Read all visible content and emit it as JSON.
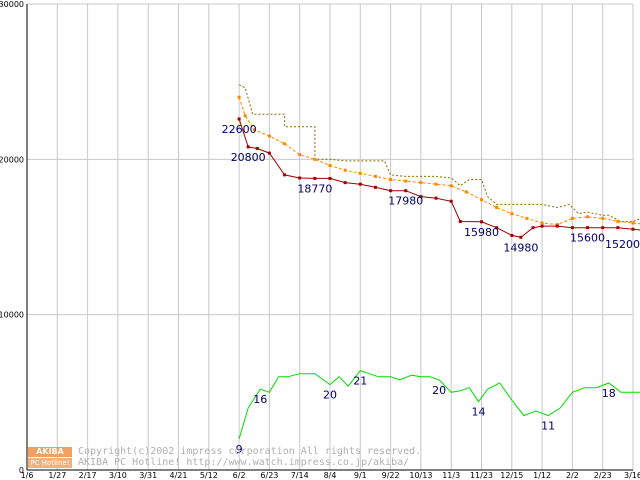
{
  "chart_data": {
    "type": "line",
    "title": "",
    "xlabel": "",
    "ylabel": "",
    "ylim": [
      0,
      30000
    ],
    "grid": true,
    "x_ticks": [
      "1/6",
      "1/27",
      "2/17",
      "3/10",
      "3/31",
      "4/21",
      "5/12",
      "6/2",
      "6/23",
      "7/14",
      "8/4",
      "9/1",
      "9/22",
      "10/13",
      "11/3",
      "11/23",
      "12/15",
      "1/12",
      "2/2",
      "2/23",
      "3/16"
    ],
    "y_ticks": [
      0,
      10000,
      20000,
      30000
    ],
    "y_tick_labels": [
      "0",
      "10000",
      "20000",
      "30000"
    ],
    "series": [
      {
        "name": "max_price",
        "color": "#807000",
        "style": "dotted",
        "points": [
          [
            7,
            24800
          ],
          [
            7.2,
            24600
          ],
          [
            7.45,
            22900
          ],
          [
            8.0,
            22900
          ],
          [
            8.5,
            22900
          ],
          [
            8.5,
            22100
          ],
          [
            9.0,
            22100
          ],
          [
            9.5,
            22100
          ],
          [
            9.5,
            20000
          ],
          [
            10,
            20000
          ],
          [
            10.5,
            19900
          ],
          [
            11,
            19900
          ],
          [
            11.5,
            19900
          ],
          [
            11.8,
            19900
          ],
          [
            12,
            19000
          ],
          [
            12.5,
            18900
          ],
          [
            13,
            18900
          ],
          [
            13.5,
            18900
          ],
          [
            14,
            18800
          ],
          [
            14.3,
            18300
          ],
          [
            14.6,
            18700
          ],
          [
            15,
            18700
          ],
          [
            15.2,
            17600
          ],
          [
            15.5,
            17100
          ],
          [
            16,
            17100
          ],
          [
            16.5,
            17100
          ],
          [
            17,
            17100
          ],
          [
            17.5,
            16900
          ],
          [
            17.9,
            17100
          ],
          [
            18.2,
            16500
          ],
          [
            18.5,
            16600
          ],
          [
            19,
            16400
          ],
          [
            19.2,
            16400
          ],
          [
            19.6,
            16000
          ],
          [
            20,
            16000
          ],
          [
            20.4,
            16300
          ],
          [
            20.8,
            16000
          ],
          [
            21,
            16000
          ]
        ]
      },
      {
        "name": "average_price",
        "color": "#ff8800",
        "style": "dashed-markers",
        "points": [
          [
            7,
            24000
          ],
          [
            7.2,
            22800
          ],
          [
            7.5,
            21900
          ],
          [
            8,
            21500
          ],
          [
            8.5,
            21000
          ],
          [
            9,
            20300
          ],
          [
            9.5,
            20000
          ],
          [
            10,
            19600
          ],
          [
            10.5,
            19300
          ],
          [
            11,
            19100
          ],
          [
            11.5,
            18900
          ],
          [
            12,
            18700
          ],
          [
            12.5,
            18600
          ],
          [
            13,
            18500
          ],
          [
            13.5,
            18400
          ],
          [
            14,
            18300
          ],
          [
            14.5,
            17900
          ],
          [
            15,
            17400
          ],
          [
            15.5,
            16900
          ],
          [
            16,
            16500
          ],
          [
            16.5,
            16200
          ],
          [
            17,
            15900
          ],
          [
            17.5,
            15800
          ],
          [
            18,
            16200
          ],
          [
            18.5,
            16300
          ],
          [
            19,
            16200
          ],
          [
            19.5,
            16000
          ],
          [
            20,
            15900
          ],
          [
            20.5,
            15800
          ],
          [
            21,
            15600
          ]
        ]
      },
      {
        "name": "min_price",
        "color": "#a00000",
        "style": "solid-markers",
        "points": [
          [
            7,
            22600
          ],
          [
            7.3,
            20800
          ],
          [
            7.6,
            20700
          ],
          [
            8,
            20400
          ],
          [
            8.5,
            19000
          ],
          [
            9,
            18800
          ],
          [
            9.5,
            18770
          ],
          [
            10,
            18770
          ],
          [
            10.5,
            18500
          ],
          [
            11,
            18400
          ],
          [
            11.5,
            18200
          ],
          [
            12,
            17980
          ],
          [
            12.5,
            17980
          ],
          [
            13,
            17600
          ],
          [
            13.5,
            17500
          ],
          [
            14,
            17300
          ],
          [
            14.3,
            16000
          ],
          [
            15,
            15980
          ],
          [
            15.5,
            15600
          ],
          [
            16,
            15100
          ],
          [
            16.3,
            14980
          ],
          [
            16.7,
            15600
          ],
          [
            17,
            15700
          ],
          [
            17.5,
            15700
          ],
          [
            18,
            15600
          ],
          [
            18.5,
            15600
          ],
          [
            19,
            15600
          ],
          [
            19.5,
            15600
          ],
          [
            20,
            15500
          ],
          [
            20.5,
            15400
          ],
          [
            21,
            15200
          ]
        ]
      },
      {
        "name": "shop_count",
        "color": "#00dd00",
        "style": "solid",
        "points": [
          [
            7,
            2000
          ],
          [
            7.3,
            4000
          ],
          [
            7.7,
            5200
          ],
          [
            8,
            5000
          ],
          [
            8.3,
            6000
          ],
          [
            8.6,
            6000
          ],
          [
            9,
            6200
          ],
          [
            9.5,
            6200
          ],
          [
            10,
            5500
          ],
          [
            10.3,
            6000
          ],
          [
            10.6,
            5400
          ],
          [
            11,
            6400
          ],
          [
            11.3,
            6200
          ],
          [
            11.6,
            6000
          ],
          [
            12,
            6000
          ],
          [
            12.3,
            5800
          ],
          [
            12.7,
            6100
          ],
          [
            13,
            6000
          ],
          [
            13.3,
            6000
          ],
          [
            13.6,
            5800
          ],
          [
            14,
            5000
          ],
          [
            14.3,
            5100
          ],
          [
            14.6,
            5300
          ],
          [
            14.9,
            4400
          ],
          [
            15.2,
            5200
          ],
          [
            15.6,
            5600
          ],
          [
            16,
            4500
          ],
          [
            16.4,
            3500
          ],
          [
            16.8,
            3800
          ],
          [
            17.2,
            3500
          ],
          [
            17.6,
            4000
          ],
          [
            18,
            5000
          ],
          [
            18.4,
            5300
          ],
          [
            18.8,
            5300
          ],
          [
            19.2,
            5600
          ],
          [
            19.6,
            5000
          ],
          [
            20,
            5000
          ],
          [
            20.5,
            5000
          ],
          [
            21,
            5000
          ]
        ]
      }
    ],
    "data_labels": [
      {
        "text": "22600",
        "x": 7,
        "y": 22600
      },
      {
        "text": "20800",
        "x": 7.3,
        "y": 20800
      },
      {
        "text": "18770",
        "x": 9.5,
        "y": 18770
      },
      {
        "text": "17980",
        "x": 12.5,
        "y": 17980
      },
      {
        "text": "15980",
        "x": 15,
        "y": 15980
      },
      {
        "text": "14980",
        "x": 16.3,
        "y": 14980
      },
      {
        "text": "15600",
        "x": 18.5,
        "y": 15600
      },
      {
        "text": "15200",
        "x": 21,
        "y": 15200
      },
      {
        "text": "9",
        "x": 7,
        "y": 2000
      },
      {
        "text": "16",
        "x": 7.7,
        "y": 5200
      },
      {
        "text": "20",
        "x": 10,
        "y": 5500
      },
      {
        "text": "21",
        "x": 11,
        "y": 6400
      },
      {
        "text": "20",
        "x": 13.6,
        "y": 5800
      },
      {
        "text": "14",
        "x": 14.9,
        "y": 4400
      },
      {
        "text": "11",
        "x": 17.2,
        "y": 3500
      },
      {
        "text": "18",
        "x": 19.2,
        "y": 5600
      }
    ]
  },
  "watermark": {
    "logo_top": "AKIBA",
    "logo_bottom": "PC Hotline!",
    "line1": "Copyright(c)2002 impress corporation All rights reserved.",
    "line2": "AKIBA PC Hotline! http://www.watch.impress.co.jp/akiba/"
  }
}
